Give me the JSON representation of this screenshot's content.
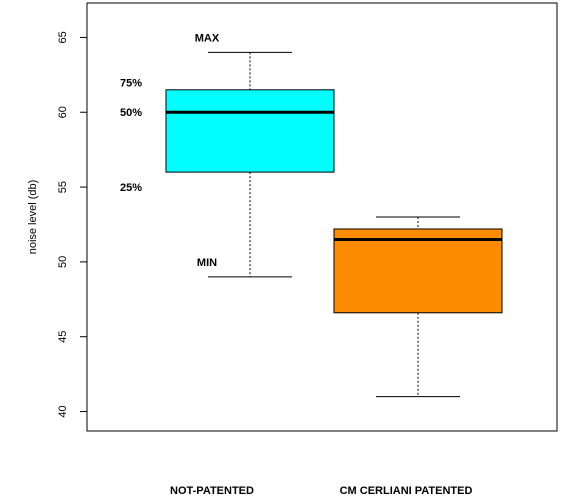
{
  "chart_data": {
    "type": "box",
    "title": "",
    "xlabel": "",
    "ylabel": "noise level (db)",
    "ylim": [
      38.7,
      67.3
    ],
    "yticks": [
      40,
      45,
      50,
      55,
      60,
      65
    ],
    "ytick_labels": [
      "40",
      "45",
      "50",
      "55",
      "60",
      "65"
    ],
    "categories": [
      "NOT-PATENTED",
      "CM CERLIANI PATENTED"
    ],
    "boxes": [
      {
        "category": "NOT-PATENTED",
        "min": 49,
        "q1": 56,
        "median": 60,
        "q3": 61.5,
        "max": 64,
        "color": "#00ffff"
      },
      {
        "category": "CM CERLIANI PATENTED",
        "min": 41,
        "q1": 46.6,
        "median": 51.5,
        "q3": 52.2,
        "max": 53,
        "color": "#ff8c00"
      }
    ],
    "annotations": [
      {
        "label": "MAX",
        "value": 65.0
      },
      {
        "label": "75%",
        "value": 62.0
      },
      {
        "label": "50%",
        "value": 60.0
      },
      {
        "label": "25%",
        "value": 55.0
      },
      {
        "label": "MIN",
        "value": 50.0
      }
    ],
    "grid": false,
    "legend": "none"
  }
}
